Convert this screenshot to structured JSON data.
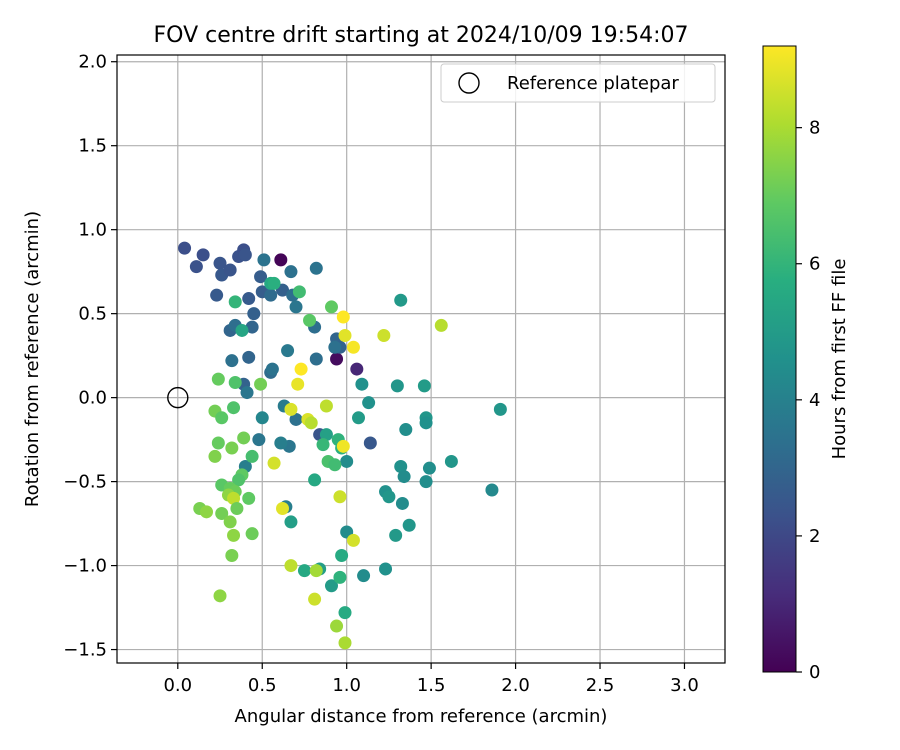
{
  "chart_data": {
    "type": "scatter",
    "title": "FOV centre drift starting at 2024/10/09 19:54:07",
    "xlabel": "Angular distance from reference (arcmin)",
    "ylabel": "Rotation from reference (arcmin)",
    "xlim": [
      -0.36,
      3.24
    ],
    "ylim": [
      -1.58,
      2.04
    ],
    "xticks": [
      0.0,
      0.5,
      1.0,
      1.5,
      2.0,
      2.5,
      3.0
    ],
    "xtick_labels": [
      "0.0",
      "0.5",
      "1.0",
      "1.5",
      "2.0",
      "2.5",
      "3.0"
    ],
    "yticks": [
      -1.5,
      -1.0,
      -0.5,
      0.0,
      0.5,
      1.0,
      1.5,
      2.0
    ],
    "ytick_labels": [
      "−1.5",
      "−1.0",
      "−0.5",
      "0.0",
      "0.5",
      "1.0",
      "1.5",
      "2.0"
    ],
    "grid": true,
    "legend": {
      "position": "top-right",
      "entries": [
        {
          "label": "Reference platepar",
          "marker": "open-circle"
        }
      ]
    },
    "reference_point": {
      "x": 0.0,
      "y": 0.0
    },
    "colorbar": {
      "label": "Hours from first FF file",
      "colormap": "viridis",
      "range": [
        0,
        9.2
      ],
      "ticks": [
        0,
        2,
        4,
        6,
        8
      ],
      "tick_labels": [
        "0",
        "2",
        "4",
        "6",
        "8"
      ]
    },
    "points": [
      {
        "x": 0.61,
        "y": 0.82,
        "c": 0.1
      },
      {
        "x": 0.94,
        "y": 0.23,
        "c": 0.3
      },
      {
        "x": 1.06,
        "y": 0.17,
        "c": 1.0
      },
      {
        "x": 0.04,
        "y": 0.89,
        "c": 2.2
      },
      {
        "x": 0.11,
        "y": 0.78,
        "c": 2.3
      },
      {
        "x": 0.15,
        "y": 0.85,
        "c": 2.2
      },
      {
        "x": 0.25,
        "y": 0.8,
        "c": 2.4
      },
      {
        "x": 0.26,
        "y": 0.73,
        "c": 2.5
      },
      {
        "x": 0.31,
        "y": 0.76,
        "c": 2.4
      },
      {
        "x": 0.36,
        "y": 0.84,
        "c": 2.3
      },
      {
        "x": 0.39,
        "y": 0.88,
        "c": 2.2
      },
      {
        "x": 0.4,
        "y": 0.85,
        "c": 2.4
      },
      {
        "x": 0.23,
        "y": 0.61,
        "c": 2.6
      },
      {
        "x": 0.42,
        "y": 0.59,
        "c": 2.6
      },
      {
        "x": 0.5,
        "y": 0.63,
        "c": 2.7
      },
      {
        "x": 0.49,
        "y": 0.72,
        "c": 2.7
      },
      {
        "x": 0.45,
        "y": 0.5,
        "c": 2.8
      },
      {
        "x": 0.31,
        "y": 0.4,
        "c": 3.0
      },
      {
        "x": 0.44,
        "y": 0.42,
        "c": 3.0
      },
      {
        "x": 0.34,
        "y": 0.43,
        "c": 3.3
      },
      {
        "x": 0.42,
        "y": 0.24,
        "c": 3.0
      },
      {
        "x": 0.32,
        "y": 0.22,
        "c": 3.4
      },
      {
        "x": 0.55,
        "y": 0.15,
        "c": 3.2
      },
      {
        "x": 0.56,
        "y": 0.17,
        "c": 3.5
      },
      {
        "x": 0.39,
        "y": 0.08,
        "c": 2.9
      },
      {
        "x": 0.41,
        "y": 0.03,
        "c": 3.6
      },
      {
        "x": 0.62,
        "y": 0.64,
        "c": 2.8
      },
      {
        "x": 0.55,
        "y": 0.61,
        "c": 3.2
      },
      {
        "x": 0.68,
        "y": 0.61,
        "c": 3.3
      },
      {
        "x": 0.7,
        "y": 0.54,
        "c": 3.6
      },
      {
        "x": 0.67,
        "y": 0.75,
        "c": 3.4
      },
      {
        "x": 0.51,
        "y": 0.82,
        "c": 3.5
      },
      {
        "x": 0.82,
        "y": 0.77,
        "c": 3.5
      },
      {
        "x": 0.81,
        "y": 0.42,
        "c": 3.3
      },
      {
        "x": 0.82,
        "y": 0.23,
        "c": 3.3
      },
      {
        "x": 0.65,
        "y": 0.28,
        "c": 3.7
      },
      {
        "x": 0.94,
        "y": 0.35,
        "c": 3.0
      },
      {
        "x": 0.96,
        "y": 0.3,
        "c": 2.9
      },
      {
        "x": 0.93,
        "y": 0.3,
        "c": 3.4
      },
      {
        "x": 1.14,
        "y": -0.27,
        "c": 2.5
      },
      {
        "x": 0.84,
        "y": -0.22,
        "c": 2.4
      },
      {
        "x": 0.7,
        "y": -0.13,
        "c": 3.4
      },
      {
        "x": 0.63,
        "y": -0.05,
        "c": 3.8
      },
      {
        "x": 0.66,
        "y": -0.29,
        "c": 3.6
      },
      {
        "x": 0.61,
        "y": -0.27,
        "c": 3.9
      },
      {
        "x": 0.48,
        "y": -0.25,
        "c": 3.6
      },
      {
        "x": 0.5,
        "y": -0.12,
        "c": 4.2
      },
      {
        "x": 0.4,
        "y": -0.41,
        "c": 3.9
      },
      {
        "x": 0.64,
        "y": -0.65,
        "c": 3.9
      },
      {
        "x": 0.88,
        "y": -0.22,
        "c": 5.2
      },
      {
        "x": 1.0,
        "y": -0.38,
        "c": 4.4
      },
      {
        "x": 1.0,
        "y": -0.8,
        "c": 4.4
      },
      {
        "x": 1.1,
        "y": -1.06,
        "c": 4.4
      },
      {
        "x": 1.32,
        "y": 0.58,
        "c": 4.9
      },
      {
        "x": 1.3,
        "y": 0.07,
        "c": 4.8
      },
      {
        "x": 1.46,
        "y": 0.07,
        "c": 5.0
      },
      {
        "x": 1.13,
        "y": -0.03,
        "c": 4.6
      },
      {
        "x": 1.07,
        "y": -0.12,
        "c": 5.0
      },
      {
        "x": 1.09,
        "y": 0.08,
        "c": 4.6
      },
      {
        "x": 1.47,
        "y": -0.12,
        "c": 4.8
      },
      {
        "x": 1.47,
        "y": -0.15,
        "c": 4.6
      },
      {
        "x": 1.35,
        "y": -0.19,
        "c": 4.5
      },
      {
        "x": 1.91,
        "y": -0.07,
        "c": 4.8
      },
      {
        "x": 1.62,
        "y": -0.38,
        "c": 4.8
      },
      {
        "x": 1.49,
        "y": -0.42,
        "c": 4.5
      },
      {
        "x": 1.32,
        "y": -0.41,
        "c": 4.6
      },
      {
        "x": 1.34,
        "y": -0.47,
        "c": 4.4
      },
      {
        "x": 1.47,
        "y": -0.5,
        "c": 4.5
      },
      {
        "x": 1.23,
        "y": -0.56,
        "c": 4.6
      },
      {
        "x": 1.25,
        "y": -0.59,
        "c": 4.8
      },
      {
        "x": 1.33,
        "y": -0.63,
        "c": 4.4
      },
      {
        "x": 1.86,
        "y": -0.55,
        "c": 4.3
      },
      {
        "x": 1.37,
        "y": -0.76,
        "c": 4.8
      },
      {
        "x": 1.29,
        "y": -0.82,
        "c": 4.9
      },
      {
        "x": 1.23,
        "y": -1.02,
        "c": 4.6
      },
      {
        "x": 0.67,
        "y": -0.74,
        "c": 5.1
      },
      {
        "x": 0.84,
        "y": -1.02,
        "c": 5.1
      },
      {
        "x": 0.91,
        "y": -1.12,
        "c": 5.0
      },
      {
        "x": 0.75,
        "y": -1.03,
        "c": 5.5
      },
      {
        "x": 0.97,
        "y": -0.94,
        "c": 5.6
      },
      {
        "x": 0.96,
        "y": -1.07,
        "c": 5.9
      },
      {
        "x": 0.99,
        "y": -1.28,
        "c": 5.6
      },
      {
        "x": 0.81,
        "y": -0.49,
        "c": 5.5
      },
      {
        "x": 0.86,
        "y": -0.28,
        "c": 6.1
      },
      {
        "x": 0.97,
        "y": -0.3,
        "c": 5.8
      },
      {
        "x": 0.95,
        "y": -0.25,
        "c": 5.9
      },
      {
        "x": 0.89,
        "y": -0.38,
        "c": 6.5
      },
      {
        "x": 0.93,
        "y": -0.4,
        "c": 6.3
      },
      {
        "x": 0.55,
        "y": 0.68,
        "c": 5.5
      },
      {
        "x": 0.57,
        "y": 0.68,
        "c": 5.8
      },
      {
        "x": 0.72,
        "y": 0.63,
        "c": 6.3
      },
      {
        "x": 0.78,
        "y": 0.46,
        "c": 6.8
      },
      {
        "x": 0.91,
        "y": 0.54,
        "c": 6.9
      },
      {
        "x": 0.38,
        "y": 0.4,
        "c": 5.4
      },
      {
        "x": 0.34,
        "y": 0.57,
        "c": 6.0
      },
      {
        "x": 0.24,
        "y": 0.11,
        "c": 7.0
      },
      {
        "x": 0.34,
        "y": 0.09,
        "c": 6.6
      },
      {
        "x": 0.49,
        "y": 0.08,
        "c": 7.2
      },
      {
        "x": 0.22,
        "y": -0.08,
        "c": 7.2
      },
      {
        "x": 0.26,
        "y": -0.12,
        "c": 6.8
      },
      {
        "x": 0.33,
        "y": -0.06,
        "c": 6.6
      },
      {
        "x": 0.24,
        "y": -0.27,
        "c": 7.0
      },
      {
        "x": 0.32,
        "y": -0.3,
        "c": 7.3
      },
      {
        "x": 0.39,
        "y": -0.24,
        "c": 7.2
      },
      {
        "x": 0.22,
        "y": -0.35,
        "c": 7.4
      },
      {
        "x": 0.44,
        "y": -0.35,
        "c": 6.4
      },
      {
        "x": 0.38,
        "y": -0.46,
        "c": 6.9
      },
      {
        "x": 0.36,
        "y": -0.49,
        "c": 6.6
      },
      {
        "x": 0.26,
        "y": -0.52,
        "c": 6.8
      },
      {
        "x": 0.31,
        "y": -0.54,
        "c": 7.0
      },
      {
        "x": 0.34,
        "y": -0.56,
        "c": 7.1
      },
      {
        "x": 0.42,
        "y": -0.6,
        "c": 6.9
      },
      {
        "x": 0.3,
        "y": -0.58,
        "c": 7.6
      },
      {
        "x": 0.33,
        "y": -0.6,
        "c": 8.3
      },
      {
        "x": 0.35,
        "y": -0.66,
        "c": 7.1
      },
      {
        "x": 0.13,
        "y": -0.66,
        "c": 7.3
      },
      {
        "x": 0.17,
        "y": -0.68,
        "c": 7.6
      },
      {
        "x": 0.26,
        "y": -0.69,
        "c": 7.2
      },
      {
        "x": 0.31,
        "y": -0.74,
        "c": 7.4
      },
      {
        "x": 0.33,
        "y": -0.82,
        "c": 7.6
      },
      {
        "x": 0.44,
        "y": -0.81,
        "c": 7.1
      },
      {
        "x": 0.32,
        "y": -0.94,
        "c": 7.3
      },
      {
        "x": 0.25,
        "y": -1.18,
        "c": 7.6
      },
      {
        "x": 0.67,
        "y": -1.0,
        "c": 8.3
      },
      {
        "x": 0.82,
        "y": -1.03,
        "c": 7.9
      },
      {
        "x": 0.81,
        "y": -1.2,
        "c": 8.5
      },
      {
        "x": 0.94,
        "y": -1.36,
        "c": 7.8
      },
      {
        "x": 0.99,
        "y": -1.46,
        "c": 8.0
      },
      {
        "x": 0.67,
        "y": -0.07,
        "c": 8.7
      },
      {
        "x": 0.71,
        "y": 0.08,
        "c": 8.9
      },
      {
        "x": 0.73,
        "y": 0.17,
        "c": 9.2
      },
      {
        "x": 0.77,
        "y": -0.13,
        "c": 8.7
      },
      {
        "x": 0.79,
        "y": -0.15,
        "c": 8.2
      },
      {
        "x": 0.88,
        "y": -0.05,
        "c": 8.3
      },
      {
        "x": 0.57,
        "y": -0.39,
        "c": 8.6
      },
      {
        "x": 0.62,
        "y": -0.66,
        "c": 8.8
      },
      {
        "x": 0.96,
        "y": -0.59,
        "c": 8.5
      },
      {
        "x": 1.04,
        "y": -0.85,
        "c": 8.6
      },
      {
        "x": 0.98,
        "y": -0.29,
        "c": 9.0
      },
      {
        "x": 0.98,
        "y": 0.48,
        "c": 9.2
      },
      {
        "x": 0.99,
        "y": 0.37,
        "c": 8.8
      },
      {
        "x": 1.04,
        "y": 0.3,
        "c": 9.1
      },
      {
        "x": 1.22,
        "y": 0.37,
        "c": 8.5
      },
      {
        "x": 1.56,
        "y": 0.43,
        "c": 8.2
      }
    ]
  }
}
